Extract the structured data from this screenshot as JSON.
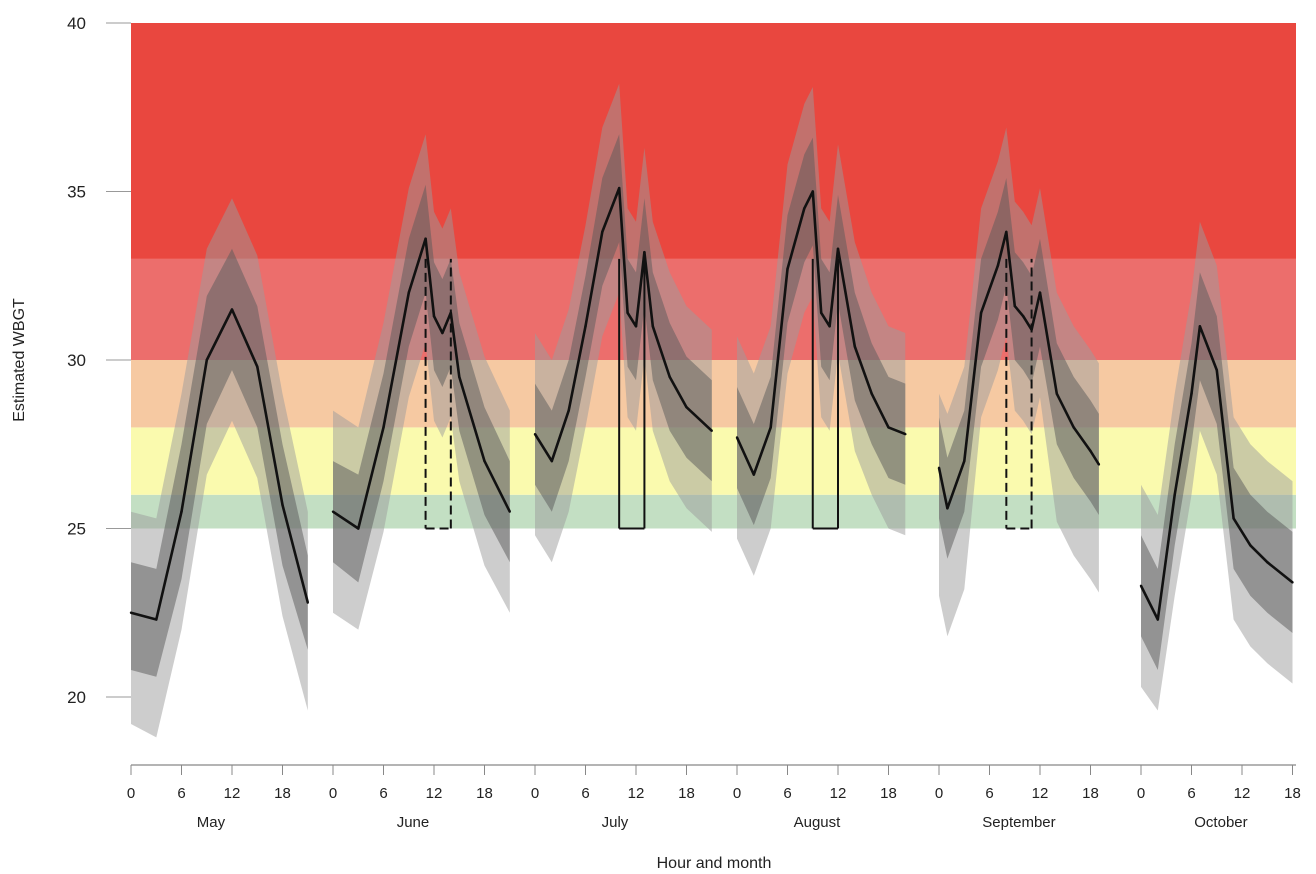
{
  "chart_data": {
    "type": "line",
    "title": "",
    "xlabel": "Hour and month",
    "ylabel": "Estimated WBGT",
    "ylim": [
      18,
      40
    ],
    "yticks": [
      20,
      25,
      30,
      35,
      40
    ],
    "grid": false,
    "risk_bands": [
      {
        "from": 25,
        "to": 26,
        "color": "#c3dfc3"
      },
      {
        "from": 26,
        "to": 28,
        "color": "#fafaae"
      },
      {
        "from": 28,
        "to": 30,
        "color": "#f6c9a2"
      },
      {
        "from": 30,
        "to": 33,
        "color": "#ec6e6c"
      },
      {
        "from": 33,
        "to": 40,
        "color": "#e9473f"
      }
    ],
    "band_colors": {
      "outer": "#9c9c9c",
      "inner": "#5a5a5a",
      "line": "#111111"
    },
    "months": [
      {
        "name": "May",
        "hour_ticks": [
          "0",
          "6",
          "12",
          "18"
        ],
        "hours": [
          0,
          3,
          6,
          9,
          12,
          15,
          18,
          21
        ],
        "values": [
          22.5,
          22.3,
          25.5,
          30.0,
          31.5,
          29.8,
          25.7,
          22.8
        ],
        "inner_band": [
          [
            20.8,
            24.0
          ],
          [
            20.6,
            23.8
          ],
          [
            23.5,
            27.5
          ],
          [
            28.1,
            31.9
          ],
          [
            29.7,
            33.3
          ],
          [
            28.0,
            31.6
          ],
          [
            23.9,
            27.5
          ],
          [
            21.4,
            24.2
          ]
        ],
        "outer_band": [
          [
            19.2,
            25.5
          ],
          [
            18.8,
            25.3
          ],
          [
            22.0,
            29.0
          ],
          [
            26.6,
            33.3
          ],
          [
            28.2,
            34.8
          ],
          [
            26.5,
            33.1
          ],
          [
            22.4,
            29.0
          ],
          [
            19.6,
            25.5
          ]
        ],
        "closure": null
      },
      {
        "name": "June",
        "hour_ticks": [
          "0",
          "6",
          "12",
          "18"
        ],
        "hours": [
          0,
          3,
          6,
          9,
          11,
          12,
          13,
          14,
          15,
          18,
          21
        ],
        "values": [
          25.5,
          25.0,
          28.0,
          32.0,
          33.6,
          31.3,
          30.8,
          31.4,
          29.5,
          27.0,
          25.5
        ],
        "inner_band": [
          [
            24.0,
            27.0
          ],
          [
            23.4,
            26.6
          ],
          [
            26.4,
            29.6
          ],
          [
            30.4,
            33.6
          ],
          [
            32.0,
            35.2
          ],
          [
            29.7,
            32.9
          ],
          [
            29.2,
            32.4
          ],
          [
            29.8,
            33.0
          ],
          [
            27.9,
            31.1
          ],
          [
            25.4,
            28.6
          ],
          [
            24.0,
            27.0
          ]
        ],
        "outer_band": [
          [
            22.5,
            28.5
          ],
          [
            22.0,
            28.0
          ],
          [
            24.9,
            31.1
          ],
          [
            28.9,
            35.1
          ],
          [
            30.5,
            36.7
          ],
          [
            28.2,
            34.4
          ],
          [
            27.7,
            33.9
          ],
          [
            28.3,
            34.5
          ],
          [
            26.4,
            32.6
          ],
          [
            23.9,
            30.1
          ],
          [
            22.5,
            28.5
          ]
        ],
        "closure": {
          "start": 11,
          "end": 14,
          "lower": 25,
          "upper": 33,
          "style": "dashed"
        }
      },
      {
        "name": "July",
        "hour_ticks": [
          "0",
          "6",
          "12",
          "18"
        ],
        "hours": [
          0,
          2,
          4,
          6,
          8,
          10,
          11,
          12,
          13,
          14,
          16,
          18,
          21
        ],
        "values": [
          27.8,
          27.0,
          28.5,
          31.0,
          33.8,
          35.1,
          31.4,
          31.0,
          33.2,
          31.0,
          29.5,
          28.6,
          27.9
        ],
        "inner_band": [
          [
            26.3,
            29.3
          ],
          [
            25.5,
            28.5
          ],
          [
            27.0,
            30.0
          ],
          [
            29.5,
            32.5
          ],
          [
            32.2,
            35.4
          ],
          [
            33.5,
            36.7
          ],
          [
            29.8,
            33.0
          ],
          [
            29.4,
            32.6
          ],
          [
            31.6,
            34.8
          ],
          [
            29.4,
            32.6
          ],
          [
            27.9,
            31.1
          ],
          [
            27.1,
            30.1
          ],
          [
            26.4,
            29.4
          ]
        ],
        "outer_band": [
          [
            24.8,
            30.8
          ],
          [
            24.0,
            30.0
          ],
          [
            25.5,
            31.5
          ],
          [
            28.0,
            34.0
          ],
          [
            30.7,
            36.9
          ],
          [
            32.0,
            38.2
          ],
          [
            28.3,
            34.5
          ],
          [
            27.9,
            34.1
          ],
          [
            30.1,
            36.3
          ],
          [
            27.9,
            34.1
          ],
          [
            26.4,
            32.6
          ],
          [
            25.6,
            31.6
          ],
          [
            24.9,
            30.9
          ]
        ],
        "closure": {
          "start": 10,
          "end": 13,
          "lower": 25,
          "upper": 33,
          "style": "solid"
        }
      },
      {
        "name": "August",
        "hour_ticks": [
          "0",
          "6",
          "12",
          "18"
        ],
        "hours": [
          0,
          2,
          4,
          6,
          8,
          9,
          10,
          11,
          12,
          14,
          16,
          18,
          20
        ],
        "values": [
          27.7,
          26.6,
          28.0,
          32.7,
          34.5,
          35.0,
          31.4,
          31.0,
          33.3,
          30.4,
          29.0,
          28.0,
          27.8
        ],
        "inner_band": [
          [
            26.2,
            29.2
          ],
          [
            25.1,
            28.1
          ],
          [
            26.5,
            29.5
          ],
          [
            31.1,
            34.3
          ],
          [
            32.9,
            36.1
          ],
          [
            33.4,
            36.6
          ],
          [
            29.8,
            33.0
          ],
          [
            29.4,
            32.6
          ],
          [
            31.7,
            34.9
          ],
          [
            28.8,
            32.0
          ],
          [
            27.5,
            30.5
          ],
          [
            26.5,
            29.5
          ],
          [
            26.3,
            29.3
          ]
        ],
        "outer_band": [
          [
            24.7,
            30.7
          ],
          [
            23.6,
            29.6
          ],
          [
            25.0,
            31.0
          ],
          [
            29.6,
            35.8
          ],
          [
            31.4,
            37.6
          ],
          [
            31.9,
            38.1
          ],
          [
            28.3,
            34.5
          ],
          [
            27.9,
            34.1
          ],
          [
            30.2,
            36.4
          ],
          [
            27.3,
            33.5
          ],
          [
            26.0,
            32.0
          ],
          [
            25.0,
            31.0
          ],
          [
            24.8,
            30.8
          ]
        ],
        "closure": {
          "start": 9,
          "end": 12,
          "lower": 25,
          "upper": 33,
          "style": "solid"
        }
      },
      {
        "name": "September",
        "hour_ticks": [
          "0",
          "6",
          "12",
          "18"
        ],
        "hours": [
          0,
          1,
          3,
          5,
          7,
          8,
          9,
          10,
          11,
          12,
          14,
          16,
          18,
          19
        ],
        "values": [
          26.8,
          25.6,
          27.0,
          31.4,
          32.8,
          33.8,
          31.6,
          31.3,
          30.9,
          32.0,
          29.0,
          28.0,
          27.3,
          26.9
        ],
        "inner_band": [
          [
            25.3,
            28.3
          ],
          [
            24.1,
            27.1
          ],
          [
            25.5,
            28.5
          ],
          [
            29.8,
            33.0
          ],
          [
            31.2,
            34.4
          ],
          [
            32.2,
            35.4
          ],
          [
            30.0,
            33.2
          ],
          [
            29.7,
            32.9
          ],
          [
            29.3,
            32.5
          ],
          [
            30.4,
            33.6
          ],
          [
            27.5,
            30.5
          ],
          [
            26.5,
            29.5
          ],
          [
            25.8,
            28.8
          ],
          [
            25.4,
            28.4
          ]
        ],
        "outer_band": [
          [
            23.0,
            29.0
          ],
          [
            21.8,
            28.4
          ],
          [
            23.2,
            29.8
          ],
          [
            28.3,
            34.5
          ],
          [
            29.7,
            35.9
          ],
          [
            30.7,
            36.9
          ],
          [
            28.5,
            34.7
          ],
          [
            28.2,
            34.4
          ],
          [
            27.8,
            34.0
          ],
          [
            28.9,
            35.1
          ],
          [
            25.2,
            32.0
          ],
          [
            24.2,
            31.0
          ],
          [
            23.5,
            30.3
          ],
          [
            23.1,
            29.9
          ]
        ],
        "closure": {
          "start": 8,
          "end": 11,
          "lower": 25,
          "upper": 33,
          "style": "dashed"
        }
      },
      {
        "name": "October",
        "hour_ticks": [
          "0",
          "6",
          "12",
          "18"
        ],
        "hours": [
          0,
          2,
          4,
          6,
          7,
          9,
          11,
          13,
          15,
          18
        ],
        "values": [
          23.3,
          22.3,
          26.0,
          29.0,
          31.0,
          29.7,
          25.3,
          24.5,
          24.0,
          23.4
        ],
        "inner_band": [
          [
            21.8,
            24.8
          ],
          [
            20.8,
            23.8
          ],
          [
            24.5,
            27.5
          ],
          [
            27.5,
            30.5
          ],
          [
            29.4,
            32.6
          ],
          [
            28.1,
            31.3
          ],
          [
            23.8,
            26.8
          ],
          [
            23.0,
            26.0
          ],
          [
            22.5,
            25.5
          ],
          [
            21.9,
            24.9
          ]
        ],
        "outer_band": [
          [
            20.3,
            26.3
          ],
          [
            19.6,
            25.4
          ],
          [
            23.0,
            29.0
          ],
          [
            26.0,
            32.0
          ],
          [
            27.9,
            34.1
          ],
          [
            26.6,
            32.8
          ],
          [
            22.3,
            28.3
          ],
          [
            21.5,
            27.5
          ],
          [
            21.0,
            27.0
          ],
          [
            20.4,
            26.4
          ]
        ],
        "closure": null
      }
    ]
  }
}
